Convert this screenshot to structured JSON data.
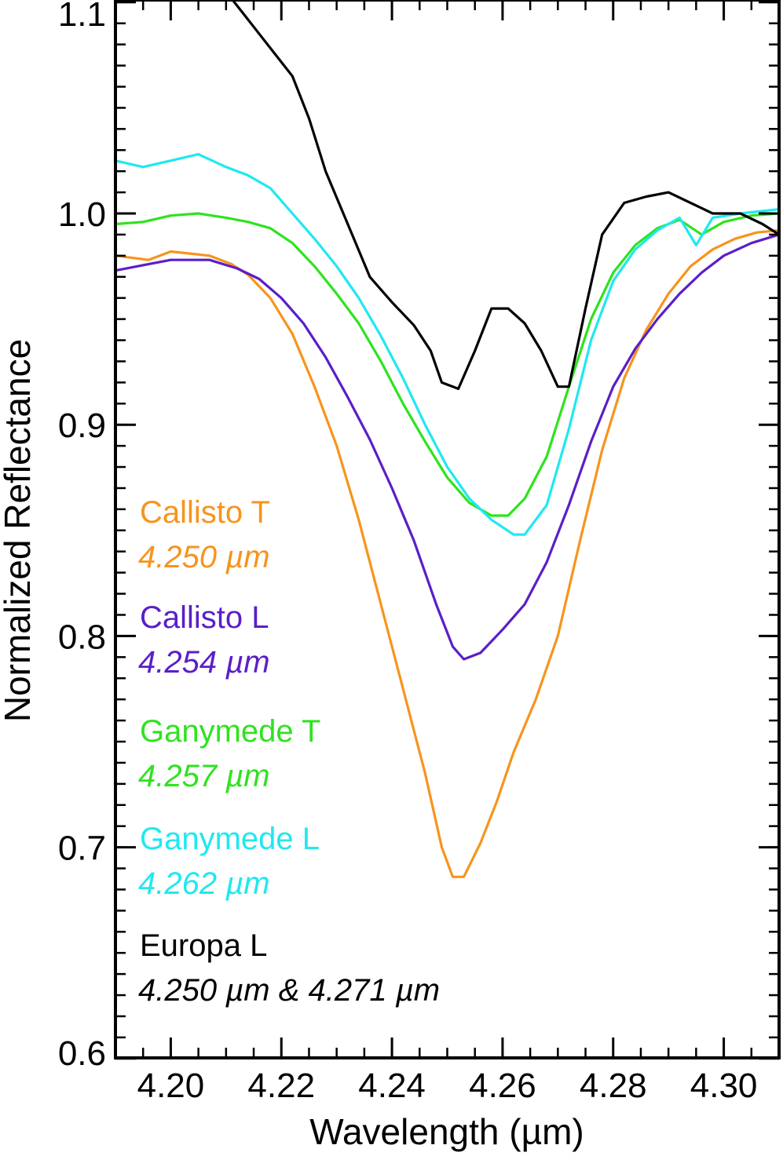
{
  "chart_data": {
    "type": "line",
    "xlabel": "Wavelength (µm)",
    "ylabel": "Normalized Reflectance",
    "xlim": [
      4.19,
      4.31
    ],
    "ylim": [
      0.6,
      1.1
    ],
    "x_ticks": [
      "4.20",
      "4.22",
      "4.24",
      "4.26",
      "4.28",
      "4.30"
    ],
    "y_ticks": [
      "0.6",
      "0.7",
      "0.8",
      "0.9",
      "1.0",
      "1.1"
    ],
    "grid": false,
    "legend_placement": "lower-left",
    "series": [
      {
        "name": "Callisto T",
        "annotation": "4.250 µm",
        "color": "#f7941d",
        "points": [
          [
            4.19,
            0.98
          ],
          [
            4.196,
            0.978
          ],
          [
            4.2,
            0.982
          ],
          [
            4.207,
            0.98
          ],
          [
            4.211,
            0.976
          ],
          [
            4.214,
            0.971
          ],
          [
            4.218,
            0.96
          ],
          [
            4.222,
            0.943
          ],
          [
            4.226,
            0.918
          ],
          [
            4.23,
            0.89
          ],
          [
            4.234,
            0.855
          ],
          [
            4.238,
            0.815
          ],
          [
            4.242,
            0.775
          ],
          [
            4.246,
            0.735
          ],
          [
            4.249,
            0.7
          ],
          [
            4.251,
            0.686
          ],
          [
            4.253,
            0.686
          ],
          [
            4.256,
            0.702
          ],
          [
            4.259,
            0.722
          ],
          [
            4.262,
            0.745
          ],
          [
            4.266,
            0.77
          ],
          [
            4.27,
            0.8
          ],
          [
            4.274,
            0.845
          ],
          [
            4.278,
            0.888
          ],
          [
            4.282,
            0.922
          ],
          [
            4.286,
            0.945
          ],
          [
            4.29,
            0.962
          ],
          [
            4.294,
            0.975
          ],
          [
            4.298,
            0.983
          ],
          [
            4.302,
            0.988
          ],
          [
            4.306,
            0.991
          ],
          [
            4.31,
            0.992
          ]
        ]
      },
      {
        "name": "Callisto L",
        "annotation": "4.254 µm",
        "color": "#5a1fc8",
        "points": [
          [
            4.19,
            0.973
          ],
          [
            4.196,
            0.976
          ],
          [
            4.2,
            0.978
          ],
          [
            4.207,
            0.978
          ],
          [
            4.212,
            0.974
          ],
          [
            4.216,
            0.969
          ],
          [
            4.22,
            0.96
          ],
          [
            4.224,
            0.948
          ],
          [
            4.228,
            0.932
          ],
          [
            4.232,
            0.913
          ],
          [
            4.236,
            0.893
          ],
          [
            4.24,
            0.87
          ],
          [
            4.244,
            0.845
          ],
          [
            4.248,
            0.815
          ],
          [
            4.251,
            0.795
          ],
          [
            4.253,
            0.789
          ],
          [
            4.256,
            0.792
          ],
          [
            4.26,
            0.803
          ],
          [
            4.264,
            0.815
          ],
          [
            4.268,
            0.835
          ],
          [
            4.272,
            0.862
          ],
          [
            4.276,
            0.892
          ],
          [
            4.28,
            0.918
          ],
          [
            4.284,
            0.936
          ],
          [
            4.288,
            0.95
          ],
          [
            4.292,
            0.962
          ],
          [
            4.296,
            0.972
          ],
          [
            4.3,
            0.98
          ],
          [
            4.305,
            0.986
          ],
          [
            4.31,
            0.99
          ]
        ]
      },
      {
        "name": "Ganymede T",
        "annotation": "4.257 µm",
        "color": "#2ee31e",
        "points": [
          [
            4.19,
            0.995
          ],
          [
            4.195,
            0.996
          ],
          [
            4.2,
            0.999
          ],
          [
            4.205,
            1.0
          ],
          [
            4.21,
            0.998
          ],
          [
            4.214,
            0.996
          ],
          [
            4.218,
            0.993
          ],
          [
            4.222,
            0.986
          ],
          [
            4.226,
            0.975
          ],
          [
            4.23,
            0.962
          ],
          [
            4.234,
            0.948
          ],
          [
            4.238,
            0.93
          ],
          [
            4.242,
            0.91
          ],
          [
            4.246,
            0.892
          ],
          [
            4.25,
            0.875
          ],
          [
            4.254,
            0.863
          ],
          [
            4.258,
            0.857
          ],
          [
            4.261,
            0.857
          ],
          [
            4.264,
            0.865
          ],
          [
            4.268,
            0.885
          ],
          [
            4.272,
            0.918
          ],
          [
            4.276,
            0.95
          ],
          [
            4.28,
            0.972
          ],
          [
            4.284,
            0.985
          ],
          [
            4.288,
            0.993
          ],
          [
            4.292,
            0.997
          ],
          [
            4.296,
            0.99
          ],
          [
            4.3,
            0.996
          ],
          [
            4.305,
            0.999
          ],
          [
            4.31,
            1.0
          ]
        ]
      },
      {
        "name": "Ganymede L",
        "annotation": "4.262 µm",
        "color": "#1fe8f0",
        "points": [
          [
            4.19,
            1.025
          ],
          [
            4.195,
            1.022
          ],
          [
            4.2,
            1.025
          ],
          [
            4.205,
            1.028
          ],
          [
            4.21,
            1.022
          ],
          [
            4.214,
            1.018
          ],
          [
            4.218,
            1.012
          ],
          [
            4.222,
            1.0
          ],
          [
            4.226,
            0.988
          ],
          [
            4.23,
            0.975
          ],
          [
            4.234,
            0.96
          ],
          [
            4.238,
            0.942
          ],
          [
            4.242,
            0.922
          ],
          [
            4.246,
            0.9
          ],
          [
            4.25,
            0.88
          ],
          [
            4.254,
            0.865
          ],
          [
            4.258,
            0.855
          ],
          [
            4.262,
            0.848
          ],
          [
            4.264,
            0.848
          ],
          [
            4.268,
            0.862
          ],
          [
            4.272,
            0.898
          ],
          [
            4.276,
            0.94
          ],
          [
            4.28,
            0.968
          ],
          [
            4.284,
            0.983
          ],
          [
            4.288,
            0.992
          ],
          [
            4.292,
            0.998
          ],
          [
            4.295,
            0.985
          ],
          [
            4.298,
            0.998
          ],
          [
            4.303,
            1.0
          ],
          [
            4.31,
            1.002
          ]
        ]
      },
      {
        "name": "Europa L",
        "annotation": "4.250 µm & 4.271 µm",
        "color": "#000000",
        "points": [
          [
            4.199,
            1.12
          ],
          [
            4.205,
            1.11
          ],
          [
            4.21,
            1.105
          ],
          [
            4.213,
            1.095
          ],
          [
            4.216,
            1.085
          ],
          [
            4.219,
            1.075
          ],
          [
            4.222,
            1.065
          ],
          [
            4.225,
            1.045
          ],
          [
            4.228,
            1.02
          ],
          [
            4.232,
            0.995
          ],
          [
            4.236,
            0.97
          ],
          [
            4.24,
            0.958
          ],
          [
            4.244,
            0.947
          ],
          [
            4.247,
            0.935
          ],
          [
            4.249,
            0.92
          ],
          [
            4.252,
            0.917
          ],
          [
            4.255,
            0.935
          ],
          [
            4.258,
            0.955
          ],
          [
            4.261,
            0.955
          ],
          [
            4.264,
            0.948
          ],
          [
            4.267,
            0.935
          ],
          [
            4.27,
            0.918
          ],
          [
            4.272,
            0.918
          ],
          [
            4.275,
            0.955
          ],
          [
            4.278,
            0.99
          ],
          [
            4.282,
            1.005
          ],
          [
            4.286,
            1.008
          ],
          [
            4.29,
            1.01
          ],
          [
            4.294,
            1.005
          ],
          [
            4.298,
            1.0
          ],
          [
            4.303,
            1.0
          ],
          [
            4.307,
            0.995
          ],
          [
            4.31,
            0.99
          ]
        ]
      }
    ]
  }
}
